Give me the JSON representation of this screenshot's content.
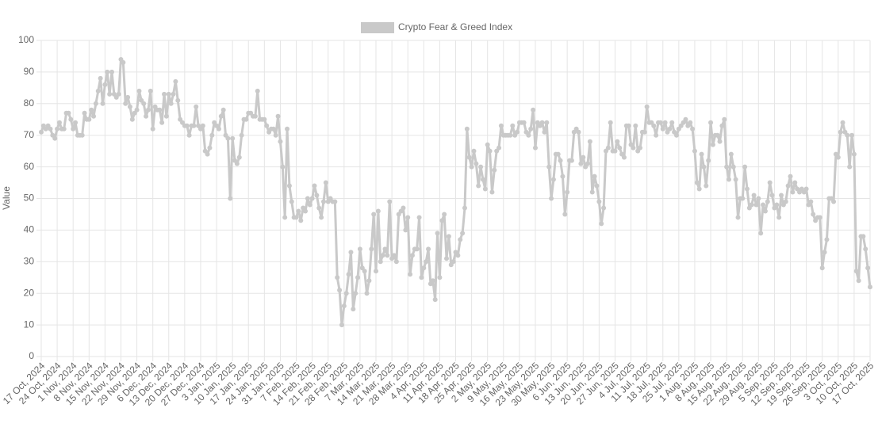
{
  "chart_data": {
    "type": "line",
    "y_label": "Value",
    "categories": [
      "17 Oct, 2024",
      null,
      null,
      null,
      null,
      null,
      null,
      "24 Oct, 2024",
      null,
      null,
      null,
      null,
      null,
      null,
      "1 Nov, 2024",
      null,
      null,
      null,
      null,
      null,
      null,
      "8 Nov, 2024",
      null,
      null,
      null,
      null,
      null,
      null,
      "15 Nov, 2024",
      null,
      null,
      null,
      null,
      null,
      null,
      "22 Nov, 2024",
      null,
      null,
      null,
      null,
      null,
      null,
      "29 Nov, 2024",
      null,
      null,
      null,
      null,
      null,
      null,
      "6 Dec, 2024",
      null,
      null,
      null,
      null,
      null,
      null,
      "13 Dec, 2024",
      null,
      null,
      null,
      null,
      null,
      null,
      "20 Dec, 2024",
      null,
      null,
      null,
      null,
      null,
      null,
      "27 Dec, 2024",
      null,
      null,
      null,
      null,
      null,
      null,
      "3 Jan, 2025",
      null,
      null,
      null,
      null,
      null,
      null,
      "10 Jan, 2025",
      null,
      null,
      null,
      null,
      null,
      null,
      "17 Jan, 2025",
      null,
      null,
      null,
      null,
      null,
      null,
      "24 Jan, 2025",
      null,
      null,
      null,
      null,
      null,
      null,
      "31 Jan, 2025",
      null,
      null,
      null,
      null,
      null,
      null,
      "7 Feb, 2025",
      null,
      null,
      null,
      null,
      null,
      null,
      "14 Feb, 2025",
      null,
      null,
      null,
      null,
      null,
      null,
      "21 Feb, 2025",
      null,
      null,
      null,
      null,
      null,
      null,
      "28 Feb, 2025",
      null,
      null,
      null,
      null,
      null,
      null,
      "7 Mar, 2025",
      null,
      null,
      null,
      null,
      null,
      null,
      "14 Mar, 2025",
      null,
      null,
      null,
      null,
      null,
      null,
      "21 Mar, 2025",
      null,
      null,
      null,
      null,
      null,
      null,
      "28 Mar, 2025",
      null,
      null,
      null,
      null,
      null,
      null,
      "4 Apr, 2025",
      null,
      null,
      null,
      null,
      null,
      null,
      "11 Apr, 2025",
      null,
      null,
      null,
      null,
      null,
      null,
      "18 Apr, 2025",
      null,
      null,
      null,
      null,
      null,
      null,
      "25 Apr, 2025",
      null,
      null,
      null,
      null,
      null,
      null,
      "2 May, 2025",
      null,
      null,
      null,
      null,
      null,
      null,
      "9 May, 2025",
      null,
      null,
      null,
      null,
      null,
      null,
      "16 May, 2025",
      null,
      null,
      null,
      null,
      null,
      null,
      "23 May, 2025",
      null,
      null,
      null,
      null,
      null,
      null,
      "30 May, 2025",
      null,
      null,
      null,
      null,
      null,
      null,
      "6 Jun, 2025",
      null,
      null,
      null,
      null,
      null,
      null,
      "13 Jun, 2025",
      null,
      null,
      null,
      null,
      null,
      null,
      "20 Jun, 2025",
      null,
      null,
      null,
      null,
      null,
      null,
      "27 Jun, 2025",
      null,
      null,
      null,
      null,
      null,
      null,
      "4 Jul, 2025",
      null,
      null,
      null,
      null,
      null,
      null,
      "11 Jul, 2025",
      null,
      null,
      null,
      null,
      null,
      null,
      "18 Jul, 2025",
      null,
      null,
      null,
      null,
      null,
      null,
      "25 Jul, 2025",
      null,
      null,
      null,
      null,
      null,
      null,
      "1 Aug, 2025",
      null,
      null,
      null,
      null,
      null,
      null,
      "8 Aug, 2025",
      null,
      null,
      null,
      null,
      null,
      null,
      "15 Aug, 2025",
      null,
      null,
      null,
      null,
      null,
      null,
      "22 Aug, 2025",
      null,
      null,
      null,
      null,
      null,
      null,
      "29 Aug, 2025",
      null,
      null,
      null,
      null,
      null,
      null,
      "5 Sep, 2025",
      null,
      null,
      null,
      null,
      null,
      null,
      "12 Sep, 2025",
      null,
      null,
      null,
      null,
      null,
      null,
      "19 Sep, 2025",
      null,
      null,
      null,
      null,
      null,
      null,
      "26 Sep, 2025",
      null,
      null,
      null,
      null,
      null,
      null,
      "3 Oct, 2025",
      null,
      null,
      null,
      null,
      null,
      null,
      "10 Oct, 2025",
      null,
      null,
      null,
      null,
      null,
      null,
      "17 Oct, 2025"
    ],
    "series": [
      {
        "name": "Crypto Fear & Greed Index",
        "color": "#c9c9c9",
        "values": [
          71,
          73,
          72,
          73,
          72,
          70,
          69,
          72,
          74,
          72,
          72,
          77,
          77,
          75,
          72,
          74,
          70,
          70,
          70,
          77,
          75,
          75,
          78,
          76,
          80,
          84,
          88,
          80,
          86,
          90,
          83,
          90,
          83,
          82,
          83,
          94,
          93,
          80,
          82,
          79,
          75,
          77,
          78,
          84,
          81,
          80,
          76,
          78,
          84,
          72,
          79,
          78,
          78,
          74,
          83,
          76,
          83,
          80,
          83,
          87,
          81,
          75,
          74,
          73,
          73,
          70,
          73,
          73,
          79,
          73,
          72,
          73,
          65,
          64,
          66,
          70,
          74,
          73,
          72,
          76,
          78,
          70,
          69,
          50,
          69,
          62,
          61,
          63,
          70,
          75,
          75,
          77,
          77,
          76,
          76,
          84,
          75,
          75,
          75,
          73,
          71,
          72,
          72,
          70,
          76,
          68,
          60,
          44,
          72,
          54,
          49,
          44,
          44,
          46,
          43,
          47,
          46,
          50,
          48,
          50,
          54,
          51,
          47,
          44,
          49,
          55,
          49,
          50,
          49,
          49,
          25,
          21,
          10,
          16,
          20,
          26,
          33,
          15,
          20,
          25,
          34,
          28,
          27,
          20,
          24,
          34,
          45,
          27,
          46,
          30,
          32,
          34,
          32,
          49,
          31,
          32,
          30,
          45,
          46,
          47,
          40,
          44,
          26,
          32,
          34,
          34,
          44,
          25,
          28,
          30,
          34,
          23,
          24,
          18,
          39,
          25,
          43,
          45,
          31,
          38,
          29,
          30,
          33,
          32,
          37,
          39,
          47,
          72,
          63,
          60,
          65,
          61,
          54,
          60,
          56,
          53,
          67,
          65,
          52,
          59,
          65,
          66,
          73,
          70,
          70,
          70,
          70,
          73,
          70,
          71,
          74,
          74,
          74,
          71,
          70,
          72,
          78,
          66,
          74,
          73,
          74,
          71,
          74,
          60,
          50,
          56,
          64,
          64,
          62,
          57,
          45,
          52,
          62,
          62,
          71,
          72,
          71,
          61,
          63,
          60,
          61,
          68,
          52,
          57,
          54,
          49,
          42,
          47,
          65,
          66,
          74,
          65,
          65,
          68,
          66,
          64,
          63,
          73,
          73,
          67,
          66,
          73,
          65,
          66,
          71,
          71,
          79,
          74,
          74,
          73,
          70,
          74,
          74,
          72,
          74,
          71,
          72,
          74,
          71,
          70,
          72,
          73,
          74,
          75,
          73,
          74,
          72,
          65,
          55,
          53,
          64,
          60,
          54,
          62,
          74,
          67,
          70,
          70,
          68,
          73,
          75,
          60,
          56,
          64,
          60,
          56,
          44,
          50,
          50,
          60,
          53,
          47,
          48,
          51,
          48,
          50,
          39,
          48,
          46,
          49,
          55,
          51,
          47,
          48,
          44,
          51,
          48,
          49,
          54,
          57,
          52,
          55,
          53,
          52,
          53,
          52,
          53,
          48,
          49,
          45,
          43,
          44,
          44,
          28,
          33,
          37,
          50,
          50,
          49,
          64,
          63,
          71,
          74,
          71,
          70,
          60,
          70,
          64,
          27,
          24,
          38,
          38,
          34,
          28,
          22
        ]
      }
    ],
    "ylim": [
      0,
      100
    ],
    "yticks": [
      0,
      10,
      20,
      30,
      40,
      50,
      60,
      70,
      80,
      90,
      100
    ],
    "grid": true,
    "legend": "top"
  }
}
